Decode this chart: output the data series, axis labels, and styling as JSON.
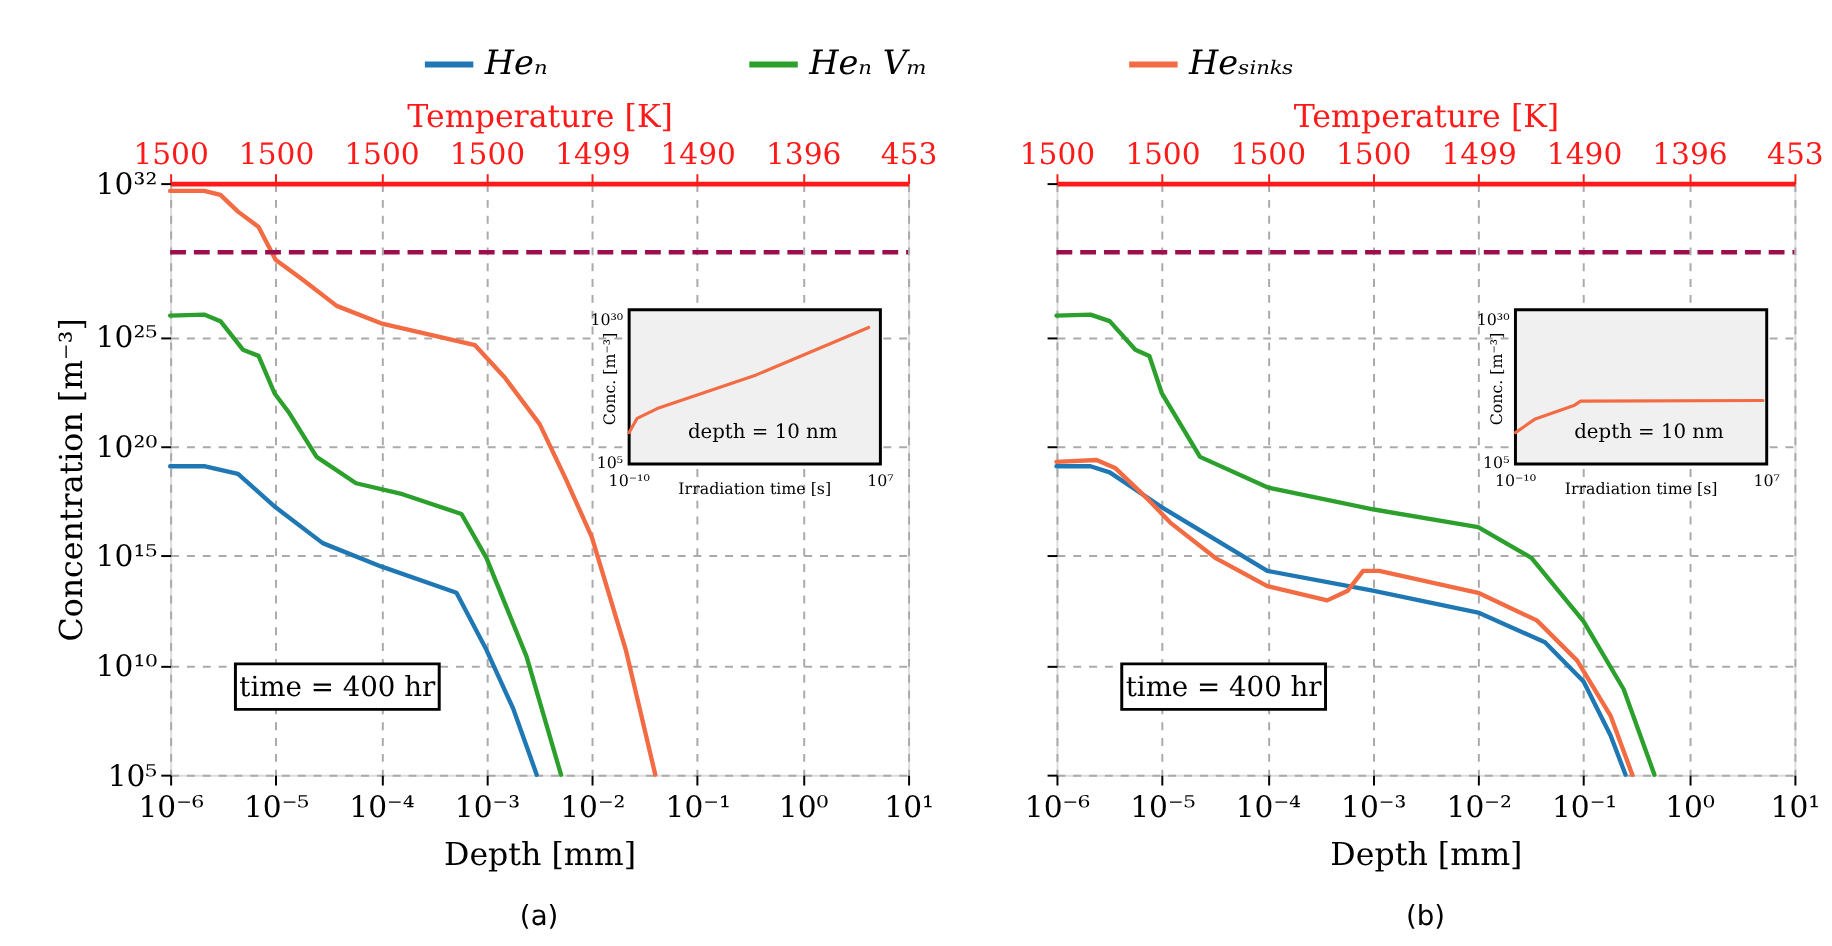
{
  "chart_data": [
    {
      "type": "line",
      "xlabel": "Depth [mm]",
      "ylabel": "Concentration [m⁻³]",
      "x2label": "Temperature [K]",
      "log": "xy",
      "grid": true,
      "legend": "top",
      "xlim": [
        1e-06,
        10
      ],
      "ylim": [
        100000.0,
        1e+32
      ],
      "xticks": [
        {
          "value": 1e-06,
          "label": "10⁻⁶"
        },
        {
          "value": 1e-05,
          "label": "10⁻⁵"
        },
        {
          "value": 0.0001,
          "label": "10⁻⁴"
        },
        {
          "value": 0.001,
          "label": "10⁻³"
        },
        {
          "value": 0.01,
          "label": "10⁻²"
        },
        {
          "value": 0.1,
          "label": "10⁻¹"
        },
        {
          "value": 1,
          "label": "10⁰"
        },
        {
          "value": 10,
          "label": "10¹"
        }
      ],
      "yticks": [
        {
          "value": 100000.0,
          "label": "10⁵"
        },
        {
          "value": 10000000000.0,
          "label": "10¹⁰"
        },
        {
          "value": 1000000000000000.0,
          "label": "10¹⁵"
        },
        {
          "value": 1e+20,
          "label": "10²⁰"
        },
        {
          "value": 1e+25,
          "label": "10²⁵"
        },
        {
          "value": 1e+32,
          "label": "10³²"
        }
      ],
      "series": [
        {
          "name": "Heₙ",
          "color": "#1f77b4",
          "x": [
            1e-06,
            2.1e-06,
            4.4e-06,
            1e-05,
            2.8e-05,
            0.0001,
            0.00052,
            0.001,
            0.0018,
            0.003
          ],
          "values": [
            1.2e+19,
            1.2e+19,
            5.4e+18,
            1.6e+17,
            3700000000000000.0,
            320000000000000.0,
            20000000000000.0,
            50000000000.0,
            100000000.0,
            100000.0
          ]
        },
        {
          "name": "Heₙ Vₘ",
          "color": "#2ca02c",
          "x": [
            1e-06,
            2.1e-06,
            3e-06,
            4.9e-06,
            6.9e-06,
            9.8e-06,
            1.35e-05,
            2.45e-05,
            5.8e-05,
            0.00016,
            0.00058,
            0.001,
            0.0024,
            0.0051
          ],
          "values": [
            8.9e+25,
            1e+26,
            5e+25,
            2.5e+24,
            1.3e+24,
            2.5e+22,
            3.2e+21,
            3.2e+19,
            2e+18,
            6.3e+17,
            7.9e+16,
            790000000000000.0,
            25000000000.0,
            100000.0
          ]
        },
        {
          "name": "Heₛᵢₙₖₛ",
          "color": "#f26b43",
          "x": [
            1e-06,
            2.1e-06,
            3e-06,
            4.4e-06,
            6.9e-06,
            1e-05,
            1.8e-05,
            3.8e-05,
            0.0001,
            0.00078,
            0.0015,
            0.0032,
            0.0056,
            0.01,
            0.021,
            0.04
          ],
          "values": [
            4.4e+31,
            4.4e+31,
            2.9e+31,
            5e+30,
            1e+30,
            3.2e+28,
            4e+27,
            2.5e+26,
            4e+25,
            4e+24,
            1.3e+23,
            1e+21,
            3.5e+18,
            7000000000000000.0,
            50000000000.0,
            100000.0
          ]
        }
      ],
      "ref_lines": [
        {
          "axis": "y",
          "value": 7e+28,
          "color": "#9c0f4c",
          "line_style": "dashed"
        }
      ],
      "annotations": [
        "time = 400 hr",
        "(a)",
        "1500",
        "1500",
        "1500",
        "1500",
        "1499",
        "1490",
        "1396",
        "453"
      ]
    },
    {
      "type": "line",
      "xlabel": "Irradiation time [s]",
      "ylabel": "Conc. [m⁻³]",
      "log": "xy",
      "xlim": [
        1e-10,
        10000000.0
      ],
      "ylim": [
        100000.0,
        1e+32
      ],
      "xticks": [
        {
          "value": 1e-10,
          "label": "10⁻¹⁰"
        },
        {
          "value": 10000000.0,
          "label": "10⁷"
        }
      ],
      "yticks": [
        {
          "value": 100000.0,
          "label": "10⁵"
        },
        {
          "value": 1e+30,
          "label": "10³⁰"
        }
      ],
      "series": [
        {
          "color": "#f26b43",
          "x": [
            1e-10,
            3.5e-10,
            7.9e-09,
            0.04,
            1600000.0
          ],
          "values": [
            32000000000.0,
            10000000000000.0,
            500000000000000.0,
            4e+20,
            7.9e+28
          ]
        }
      ],
      "annotations": [
        "depth = 10 nm"
      ]
    },
    {
      "type": "line",
      "xlabel": "Depth [mm]",
      "x2label": "Temperature [K]",
      "log": "xy",
      "grid": true,
      "tick_labels": "x",
      "xlim": [
        1e-06,
        10
      ],
      "ylim": [
        100000.0,
        1e+32
      ],
      "xticks": [
        {
          "value": 1e-06,
          "label": "10⁻⁶"
        },
        {
          "value": 1e-05,
          "label": "10⁻⁵"
        },
        {
          "value": 0.0001,
          "label": "10⁻⁴"
        },
        {
          "value": 0.001,
          "label": "10⁻³"
        },
        {
          "value": 0.01,
          "label": "10⁻²"
        },
        {
          "value": 0.1,
          "label": "10⁻¹"
        },
        {
          "value": 1,
          "label": "10⁰"
        },
        {
          "value": 10,
          "label": "10¹"
        }
      ],
      "yticks": [
        {
          "value": 100000.0,
          "label": null
        },
        {
          "value": 10000000000.0,
          "label": null
        },
        {
          "value": 1000000000000000.0,
          "label": null
        },
        {
          "value": 1e+20,
          "label": null
        },
        {
          "value": 1e+25,
          "label": null
        },
        {
          "value": 1e+32,
          "label": null
        }
      ],
      "series": [
        {
          "color": "#1f77b4",
          "x": [
            1e-06,
            2.1e-06,
            3.2e-06,
            1e-05,
            0.0001,
            0.001,
            0.01,
            0.043,
            0.1,
            0.18,
            0.25
          ],
          "values": [
            1.2e+19,
            1.2e+19,
            6.3e+18,
            1.6e+17,
            200000000000000.0,
            25000000000000.0,
            2500000000000.0,
            110000000000.0,
            1800000000.0,
            6300000.0,
            100000.0
          ]
        },
        {
          "color": "#2ca02c",
          "x": [
            1e-06,
            2.1e-06,
            3.2e-06,
            5.6e-06,
            7.6e-06,
            1e-05,
            2.3e-05,
            0.0001,
            0.001,
            0.01,
            0.032,
            0.1,
            0.24,
            0.47
          ],
          "values": [
            8.9e+25,
            1e+26,
            5e+25,
            2.5e+24,
            1.3e+24,
            2.5e+22,
            3.2e+19,
            1.3e+18,
            1.3e+17,
            2e+16,
            790000000000000.0,
            1000000000000.0,
            790000000.0,
            100000.0
          ]
        },
        {
          "color": "#f26b43",
          "x": [
            1e-06,
            2.4e-06,
            3.6e-06,
            7.6e-06,
            1.2e-05,
            3.2e-05,
            0.0001,
            0.00037,
            0.00058,
            0.00081,
            0.00115,
            0.01,
            0.036,
            0.087,
            0.18,
            0.29
          ],
          "values": [
            1.9e+19,
            2.3e+19,
            1e+19,
            3.2e+17,
            3.2e+16,
            790000000000000.0,
            40000000000000.0,
            9000000000000.0,
            25000000000000.0,
            200000000000000.0,
            200000000000000.0,
            20000000000000.0,
            1100000000000.0,
            16000000000.0,
            50000000.0,
            100000.0
          ]
        }
      ],
      "ref_lines": [
        {
          "axis": "y",
          "value": 7e+28,
          "color": "#9c0f4c",
          "line_style": "dashed"
        }
      ],
      "annotations": [
        "time = 400 hr",
        "(b)",
        "1500",
        "1500",
        "1500",
        "1500",
        "1499",
        "1490",
        "1396",
        "453"
      ]
    },
    {
      "type": "line",
      "xlabel": "Irradiation time [s]",
      "ylabel": "Conc. [m⁻³]",
      "log": "xy",
      "xlim": [
        1e-10,
        10000000.0
      ],
      "ylim": [
        100000.0,
        1e+32
      ],
      "xticks": [
        {
          "value": 1e-10,
          "label": "10⁻¹⁰"
        },
        {
          "value": 10000000.0,
          "label": "10⁷"
        }
      ],
      "yticks": [
        {
          "value": 100000.0,
          "label": "10⁵"
        },
        {
          "value": 1e+30,
          "label": "10³⁰"
        }
      ],
      "series": [
        {
          "color": "#f26b43",
          "x": [
            1e-10,
            2.2e-09,
            1e-06,
            2.6e-06,
            5500000.0
          ],
          "values": [
            32000000000.0,
            7900000000000.0,
            2000000000000000.0,
            1e+16,
            1.3e+16
          ]
        }
      ],
      "annotations": [
        "depth = 10 nm"
      ]
    }
  ]
}
